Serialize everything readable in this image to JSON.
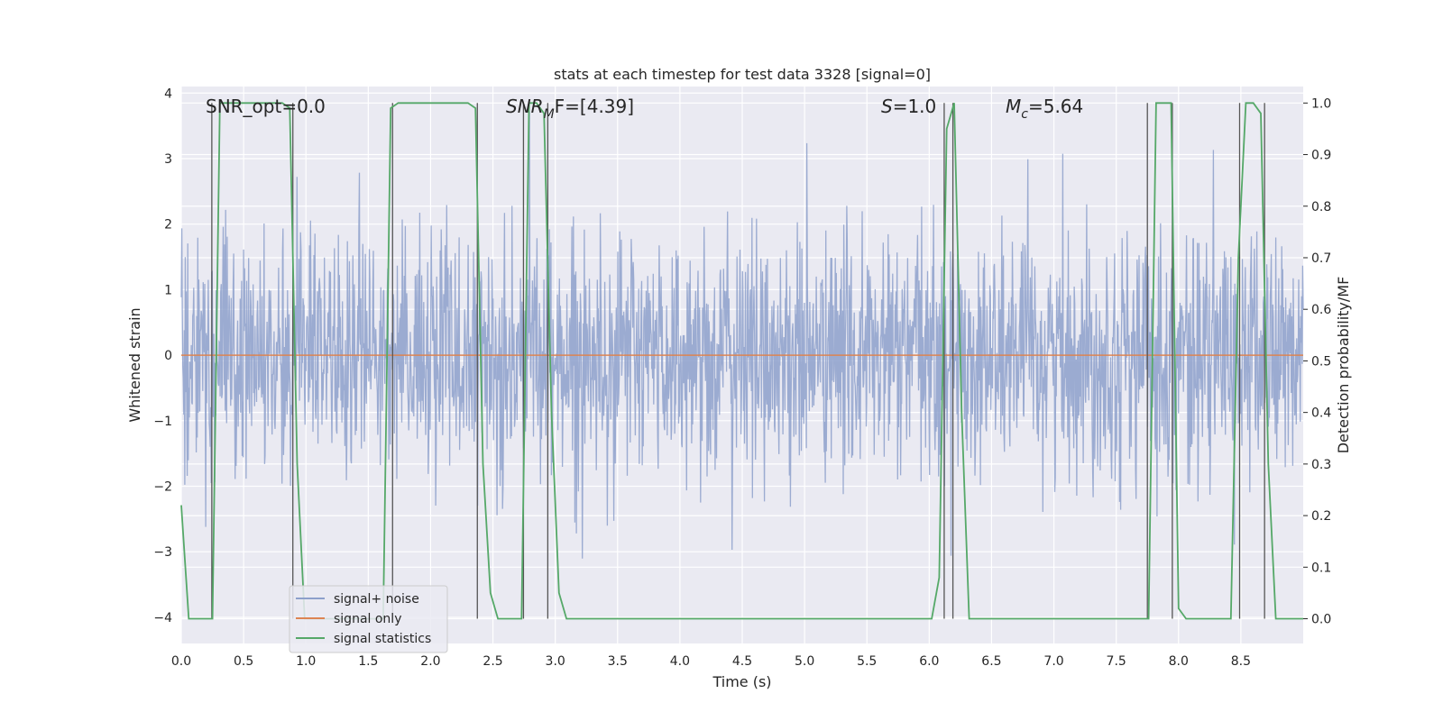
{
  "chart_data": {
    "type": "line",
    "title": "stats at each timestep for test data 3328 [signal=0]",
    "xlabel": "Time (s)",
    "ylabel": "Whitened strain",
    "ylabel_right": "Detection probability/MF",
    "xlim": [
      0.0,
      9.0
    ],
    "ylim": [
      -4.4,
      4.1
    ],
    "ylim_right": [
      -0.048,
      1.032
    ],
    "x_ticks": [
      0.0,
      0.5,
      1.0,
      1.5,
      2.0,
      2.5,
      3.0,
      3.5,
      4.0,
      4.5,
      5.0,
      5.5,
      6.0,
      6.5,
      7.0,
      7.5,
      8.0,
      8.5
    ],
    "x_tick_labels": [
      "0.0",
      "0.5",
      "1.0",
      "1.5",
      "2.0",
      "2.5",
      "3.0",
      "3.5",
      "4.0",
      "4.5",
      "5.0",
      "5.5",
      "6.0",
      "6.5",
      "7.0",
      "7.5",
      "8.0",
      "8.5"
    ],
    "y_ticks": [
      -4,
      -3,
      -2,
      -1,
      0,
      1,
      2,
      3,
      4
    ],
    "y_tick_labels": [
      "−4",
      "−3",
      "−2",
      "−1",
      "0",
      "1",
      "2",
      "3",
      "4"
    ],
    "y_right_ticks": [
      0.0,
      0.1,
      0.2,
      0.3,
      0.4,
      0.5,
      0.6,
      0.7,
      0.8,
      0.9,
      1.0
    ],
    "y_right_tick_labels": [
      "0.0",
      "0.1",
      "0.2",
      "0.3",
      "0.4",
      "0.5",
      "0.6",
      "0.7",
      "0.8",
      "0.9",
      "1.0"
    ],
    "annotations": [
      {
        "id": "snr-opt",
        "text": "SNR_opt=0.0",
        "x": 0.19,
        "y": 3.8
      },
      {
        "id": "snr-mf",
        "base": "SNR",
        "sub": "M",
        "rest": "F=[4.39]",
        "x": 2.6,
        "y": 3.8
      },
      {
        "id": "s",
        "italic": "S",
        "rest": "=1.0",
        "x": 5.6,
        "y": 3.8
      },
      {
        "id": "mc",
        "base": "M",
        "sub": "c",
        "rest": "=5.64",
        "x": 6.6,
        "y": 3.8
      }
    ],
    "legend": {
      "position": "lower-left",
      "entries": [
        {
          "label": "signal+ noise",
          "color": "#8da0cb"
        },
        {
          "label": "signal only",
          "color": "#dd8452"
        },
        {
          "label": "signal statistics",
          "color": "#55a868"
        }
      ]
    },
    "series": [
      {
        "name": "signal+ noise",
        "color": "#8da0cb",
        "axis": "left",
        "kind": "noise",
        "std": 0.92,
        "n_points": 2250,
        "x_range": [
          0.0,
          9.0
        ]
      },
      {
        "name": "signal only",
        "color": "#dd8452",
        "axis": "left",
        "x": [
          0.0,
          9.0
        ],
        "y": [
          0.0,
          0.0
        ]
      },
      {
        "name": "signal statistics",
        "color": "#55a868",
        "axis": "right",
        "x": [
          0.0,
          0.06,
          0.19,
          0.25,
          0.31,
          0.81,
          0.87,
          0.93,
          0.99,
          1.05,
          1.62,
          1.68,
          1.74,
          2.3,
          2.36,
          2.42,
          2.48,
          2.54,
          2.67,
          2.73,
          2.79,
          2.85,
          2.91,
          2.97,
          3.03,
          3.09,
          6.02,
          6.08,
          6.14,
          6.2,
          6.26,
          6.32,
          7.76,
          7.82,
          7.88,
          7.94,
          8.0,
          8.06,
          8.12,
          8.22,
          8.42,
          8.48,
          8.54,
          8.6,
          8.66,
          8.72,
          8.78,
          8.84,
          9.0
        ],
        "y": [
          0.22,
          0.0,
          0.0,
          0.0,
          1.0,
          1.0,
          0.99,
          0.3,
          0.0,
          0.0,
          0.0,
          0.99,
          1.0,
          1.0,
          0.99,
          0.3,
          0.05,
          0.0,
          0.0,
          0.0,
          1.0,
          1.0,
          0.98,
          0.4,
          0.05,
          0.0,
          0.0,
          0.08,
          0.95,
          1.0,
          0.4,
          0.0,
          0.0,
          1.0,
          1.0,
          1.0,
          0.02,
          0.0,
          0.0,
          0.0,
          0.0,
          0.7,
          1.0,
          1.0,
          0.98,
          0.3,
          0.0,
          0.0,
          0.0
        ]
      },
      {
        "name": "vertical markers",
        "color": "#555555",
        "axis": "left",
        "kind": "vlines",
        "x": [
          0.245,
          0.895,
          1.695,
          2.375,
          2.745,
          2.94,
          6.12,
          6.19,
          7.75,
          7.95,
          8.49,
          8.69
        ]
      }
    ]
  }
}
